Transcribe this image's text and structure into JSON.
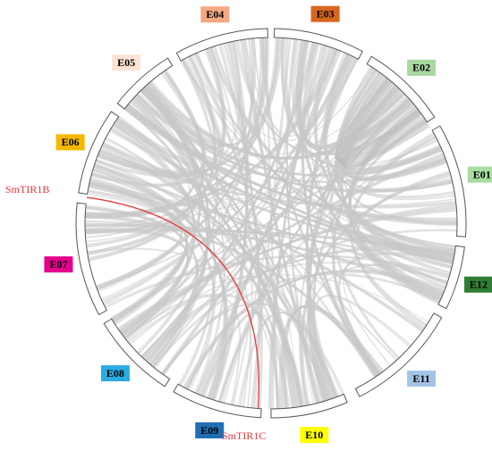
{
  "chromosomes": [
    {
      "label": "E03",
      "color": "#d9661f"
    },
    {
      "label": "E02",
      "color": "#a9d8a0"
    },
    {
      "label": "E01",
      "color": "#a8dca0"
    },
    {
      "label": "E12",
      "color": "#2e7d32"
    },
    {
      "label": "E11",
      "color": "#a3c4e6"
    },
    {
      "label": "E10",
      "color": "#ffff00"
    },
    {
      "label": "E09",
      "color": "#1f6fb3"
    },
    {
      "label": "E08",
      "color": "#2aace2"
    },
    {
      "label": "E07",
      "color": "#e4008c"
    },
    {
      "label": "E06",
      "color": "#f5b800"
    },
    {
      "label": "E05",
      "color": "#fde3d5"
    },
    {
      "label": "E04",
      "color": "#f4a883"
    }
  ],
  "highlight": {
    "gene_a": "SmTIR1B",
    "gene_b": "SmTIR1C",
    "color": "#e8383d"
  }
}
